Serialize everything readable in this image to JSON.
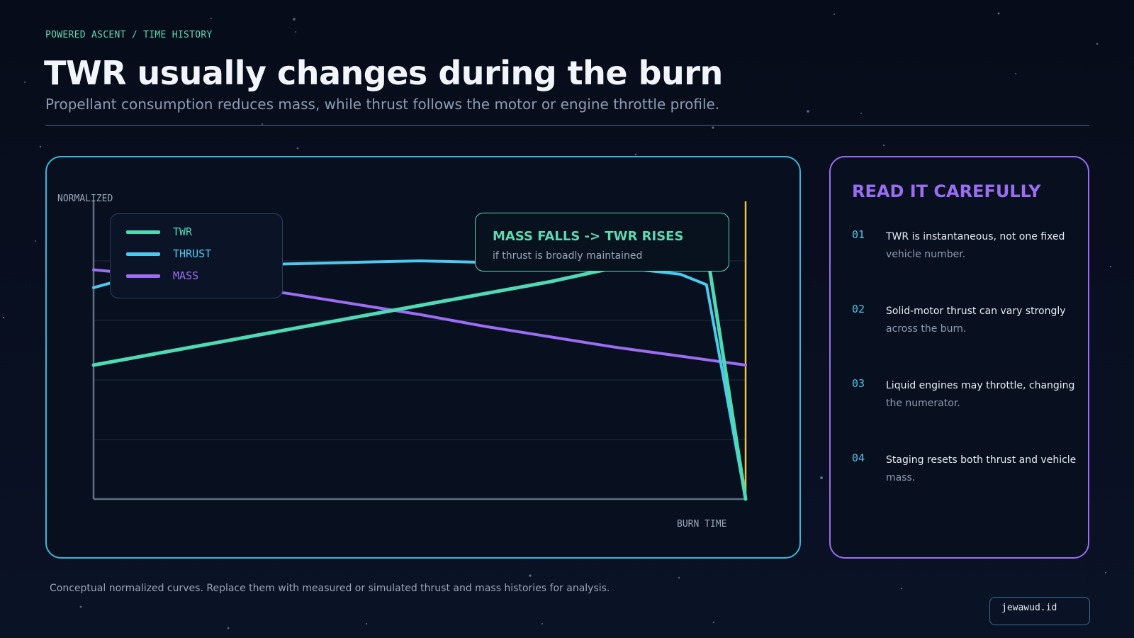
{
  "header": {
    "kicker": "POWERED ASCENT / TIME HISTORY",
    "title": "TWR usually changes during the burn",
    "subtitle": "Propellant consumption reduces mass, while thrust follows the motor or engine throttle profile."
  },
  "chart_data": {
    "type": "line",
    "ylabel": "NORMALIZED",
    "xlabel": "BURN TIME",
    "xlim": [
      0,
      1
    ],
    "ylim": [
      0,
      1
    ],
    "grid": true,
    "legend_position": "top-left",
    "series": [
      {
        "name": "TWR",
        "color": "#4fd9b4",
        "x": [
          0,
          0.1,
          0.2,
          0.3,
          0.4,
          0.5,
          0.6,
          0.7,
          0.8,
          0.9,
          0.94,
          1.0
        ],
        "y": [
          0.45,
          0.49,
          0.53,
          0.57,
          0.61,
          0.65,
          0.69,
          0.73,
          0.7775,
          0.8225,
          0.84,
          0.0
        ]
      },
      {
        "name": "THRUST",
        "color": "#4cc9f0",
        "x": [
          0,
          0.05,
          0.1,
          0.2,
          0.3,
          0.4,
          0.5,
          0.6,
          0.7,
          0.8,
          0.9,
          0.94,
          1.0
        ],
        "y": [
          0.71,
          0.74,
          0.76,
          0.785,
          0.79,
          0.795,
          0.8,
          0.795,
          0.79,
          0.78,
          0.755,
          0.72,
          0.0
        ]
      },
      {
        "name": "MASS",
        "color": "#9a6df2",
        "x": [
          0,
          0.1,
          0.2,
          0.3,
          0.4,
          0.5,
          0.6,
          0.7,
          0.8,
          0.9,
          1.0
        ],
        "y": [
          0.77,
          0.75,
          0.72,
          0.69,
          0.655,
          0.62,
          0.58,
          0.545,
          0.51,
          0.48,
          0.45
        ]
      }
    ],
    "annotation": {
      "title": "MASS FALLS -> TWR RISES",
      "subtitle": "if thrust is broadly maintained"
    },
    "burnout_marker": {
      "x": 1.0,
      "color": "#e8c04c"
    }
  },
  "side_panel": {
    "title": "READ IT CAREFULLY",
    "notes": [
      {
        "number": "01",
        "line1": "TWR is instantaneous, not one fixed",
        "line2": "vehicle number."
      },
      {
        "number": "02",
        "line1": "Solid-motor thrust can vary strongly",
        "line2": "across the burn."
      },
      {
        "number": "03",
        "line1": "Liquid engines may throttle, changing",
        "line2": "the numerator."
      },
      {
        "number": "04",
        "line1": "Staging resets both thrust and vehicle",
        "line2": "mass."
      }
    ]
  },
  "footer": {
    "note": "Conceptual normalized curves. Replace them with measured or simulated thrust and mass histories for analysis.",
    "brand": "jewawud.id"
  }
}
